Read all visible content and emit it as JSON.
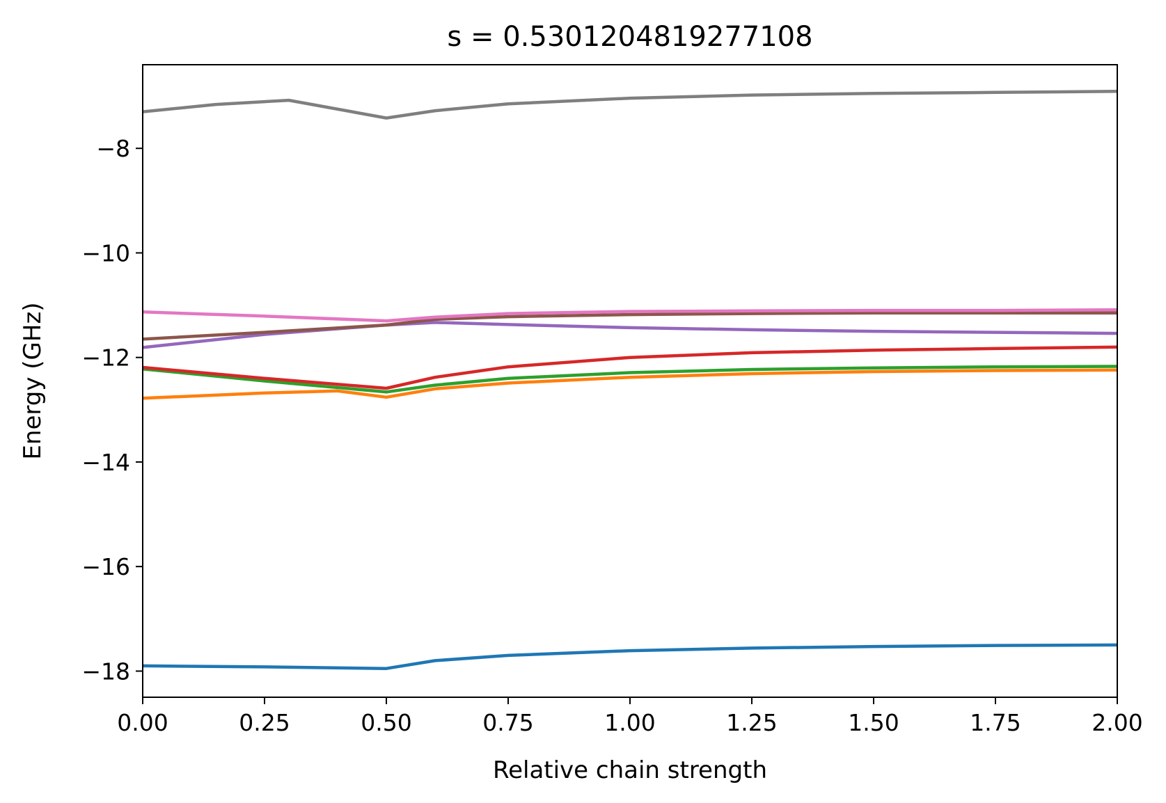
{
  "chart_data": {
    "type": "line",
    "title": "s = 0.5301204819277108",
    "xlabel": "Relative chain strength",
    "ylabel": "Energy (GHz)",
    "xlim": [
      0.0,
      2.0
    ],
    "ylim": [
      -18.5,
      -6.4
    ],
    "xticks": [
      0.0,
      0.25,
      0.5,
      0.75,
      1.0,
      1.25,
      1.5,
      1.75,
      2.0
    ],
    "xtick_labels": [
      "0.00",
      "0.25",
      "0.50",
      "0.75",
      "1.00",
      "1.25",
      "1.50",
      "1.75",
      "2.00"
    ],
    "yticks": [
      -18,
      -16,
      -14,
      -12,
      -10,
      -8
    ],
    "ytick_labels": [
      "−18",
      "−16",
      "−14",
      "−12",
      "−10",
      "−8"
    ],
    "grid": false,
    "legend": false,
    "series": [
      {
        "color": "#1f77b4",
        "x": [
          0,
          0.25,
          0.5,
          0.6,
          0.75,
          1.0,
          1.25,
          1.5,
          1.75,
          2.0
        ],
        "values": [
          -17.9,
          -17.92,
          -17.95,
          -17.8,
          -17.7,
          -17.61,
          -17.56,
          -17.53,
          -17.51,
          -17.5
        ]
      },
      {
        "color": "#ff7f0e",
        "x": [
          0,
          0.25,
          0.4,
          0.5,
          0.6,
          0.75,
          1.0,
          1.25,
          1.5,
          1.75,
          2.0
        ],
        "values": [
          -12.78,
          -12.68,
          -12.64,
          -12.76,
          -12.6,
          -12.49,
          -12.38,
          -12.31,
          -12.27,
          -12.25,
          -12.24
        ]
      },
      {
        "color": "#2ca02c",
        "x": [
          0,
          0.25,
          0.5,
          0.6,
          0.75,
          1.0,
          1.25,
          1.5,
          1.75,
          2.0
        ],
        "values": [
          -12.22,
          -12.45,
          -12.66,
          -12.53,
          -12.4,
          -12.29,
          -12.23,
          -12.2,
          -12.18,
          -12.17
        ]
      },
      {
        "color": "#d62728",
        "x": [
          0,
          0.25,
          0.5,
          0.6,
          0.75,
          1.0,
          1.25,
          1.5,
          1.75,
          2.0
        ],
        "values": [
          -12.19,
          -12.4,
          -12.59,
          -12.38,
          -12.18,
          -12.0,
          -11.91,
          -11.86,
          -11.83,
          -11.8
        ]
      },
      {
        "color": "#9467bd",
        "x": [
          0,
          0.25,
          0.5,
          0.6,
          0.75,
          1.0,
          1.25,
          1.5,
          1.75,
          2.0
        ],
        "values": [
          -11.81,
          -11.56,
          -11.38,
          -11.33,
          -11.37,
          -11.43,
          -11.47,
          -11.5,
          -11.52,
          -11.54
        ]
      },
      {
        "color": "#8c564b",
        "x": [
          0,
          0.25,
          0.5,
          0.6,
          0.75,
          1.0,
          1.25,
          1.5,
          1.75,
          2.0
        ],
        "values": [
          -11.65,
          -11.52,
          -11.38,
          -11.27,
          -11.22,
          -11.18,
          -11.16,
          -11.15,
          -11.15,
          -11.15
        ]
      },
      {
        "color": "#e377c2",
        "x": [
          0,
          0.25,
          0.5,
          0.6,
          0.75,
          1.0,
          1.25,
          1.5,
          1.75,
          2.0
        ],
        "values": [
          -11.13,
          -11.21,
          -11.3,
          -11.23,
          -11.16,
          -11.12,
          -11.11,
          -11.1,
          -11.1,
          -11.09
        ]
      },
      {
        "color": "#7f7f7f",
        "x": [
          0,
          0.15,
          0.3,
          0.5,
          0.6,
          0.75,
          1.0,
          1.25,
          1.5,
          1.75,
          2.0
        ],
        "values": [
          -7.3,
          -7.16,
          -7.08,
          -7.42,
          -7.28,
          -7.15,
          -7.04,
          -6.98,
          -6.95,
          -6.93,
          -6.91
        ]
      }
    ]
  }
}
